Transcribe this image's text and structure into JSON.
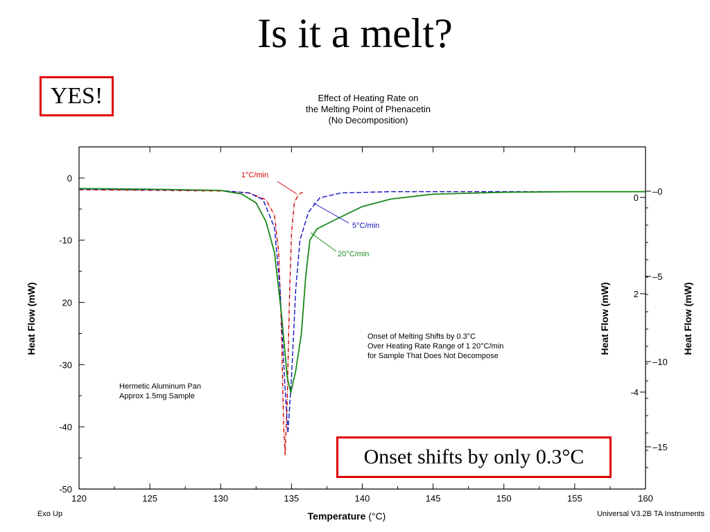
{
  "slide": {
    "title": "Is it a melt?",
    "callout_yes": "YES!",
    "callout_onset": "Onset shifts by only 0.3°C"
  },
  "colors": {
    "callout_border": "#e00000",
    "series_1": "#d00000",
    "series_5": "#1010c0",
    "series_20": "#1a8a1a"
  },
  "chart_data": {
    "type": "line",
    "title": "Effect of Heating Rate on\nthe Melting Point of Phenacetin\n(No Decomposition)",
    "title_lines": [
      "Effect of Heating Rate on",
      "the Melting Point of Phenacetin",
      "(No Decomposition)"
    ],
    "xlabel": "Temperature",
    "xunit": "(°C)",
    "xlim": [
      120,
      160
    ],
    "x_ticks": [
      120,
      125,
      130,
      135,
      140,
      145,
      150,
      155,
      160
    ],
    "y_axes": [
      {
        "label": "Heat Flow (mW)",
        "side": "left",
        "ticks": [
          "0",
          "-10",
          "20",
          "-30",
          "-40",
          "-50"
        ]
      },
      {
        "label": "Heat Flow (mW)",
        "side": "right-inner",
        "ticks": [
          "0",
          "2",
          "-4"
        ]
      },
      {
        "label": "Heat Flow (mW)",
        "side": "right-outer",
        "ticks": [
          "0",
          "-5",
          "-10",
          "-15"
        ]
      }
    ],
    "ylim": [
      -50,
      5
    ],
    "series": [
      {
        "name": "1°C/min",
        "color": "#d00000",
        "points": [
          [
            120,
            -1.9
          ],
          [
            126,
            -2.0
          ],
          [
            130,
            -2.1
          ],
          [
            132,
            -2.4
          ],
          [
            133.2,
            -3.5
          ],
          [
            133.8,
            -6
          ],
          [
            134.1,
            -12
          ],
          [
            134.3,
            -25
          ],
          [
            134.45,
            -40
          ],
          [
            134.55,
            -44.5
          ],
          [
            134.7,
            -36
          ],
          [
            134.85,
            -20
          ],
          [
            135.0,
            -9
          ],
          [
            135.2,
            -4
          ],
          [
            135.5,
            -2.6
          ],
          [
            135.8,
            -2.3
          ]
        ]
      },
      {
        "name": "5°C/min",
        "color": "#1010c0",
        "points": [
          [
            120,
            -1.8
          ],
          [
            125,
            -1.9
          ],
          [
            130,
            -2.0
          ],
          [
            132,
            -2.4
          ],
          [
            133,
            -3.5
          ],
          [
            133.8,
            -8
          ],
          [
            134.2,
            -18
          ],
          [
            134.5,
            -32
          ],
          [
            134.75,
            -41
          ],
          [
            135.0,
            -32
          ],
          [
            135.3,
            -18
          ],
          [
            135.6,
            -10
          ],
          [
            136.2,
            -5.5
          ],
          [
            137,
            -3.2
          ],
          [
            138.5,
            -2.4
          ],
          [
            142,
            -2.2
          ],
          [
            160,
            -2.2
          ]
        ]
      },
      {
        "name": "20°C/min",
        "color": "#1a8a1a",
        "points": [
          [
            120,
            -1.7
          ],
          [
            125,
            -1.8
          ],
          [
            130,
            -2.0
          ],
          [
            131.5,
            -2.6
          ],
          [
            132.5,
            -4
          ],
          [
            133.2,
            -7
          ],
          [
            133.8,
            -12
          ],
          [
            134.3,
            -22
          ],
          [
            134.7,
            -32
          ],
          [
            134.95,
            -34.5
          ],
          [
            135.3,
            -31
          ],
          [
            135.7,
            -25
          ],
          [
            136.0,
            -16
          ],
          [
            136.3,
            -10
          ],
          [
            136.8,
            -8.2
          ],
          [
            138,
            -6.8
          ],
          [
            140,
            -4.6
          ],
          [
            142,
            -3.4
          ],
          [
            145,
            -2.6
          ],
          [
            150,
            -2.3
          ],
          [
            155,
            -2.2
          ],
          [
            160,
            -2.2
          ]
        ]
      }
    ],
    "annotations": {
      "onset_text": [
        "Onset of Melting Shifts by 0.3°C",
        "Over Heating Rate Range of 1 20°C/min",
        "for Sample That Does Not Decompose"
      ],
      "sample_text": [
        "Hermetic Aluminum Pan",
        "Approx 1.5mg Sample"
      ],
      "exo": "Exo Up",
      "instrument": "Universal V3.2B TA Instruments"
    },
    "grid": false
  }
}
